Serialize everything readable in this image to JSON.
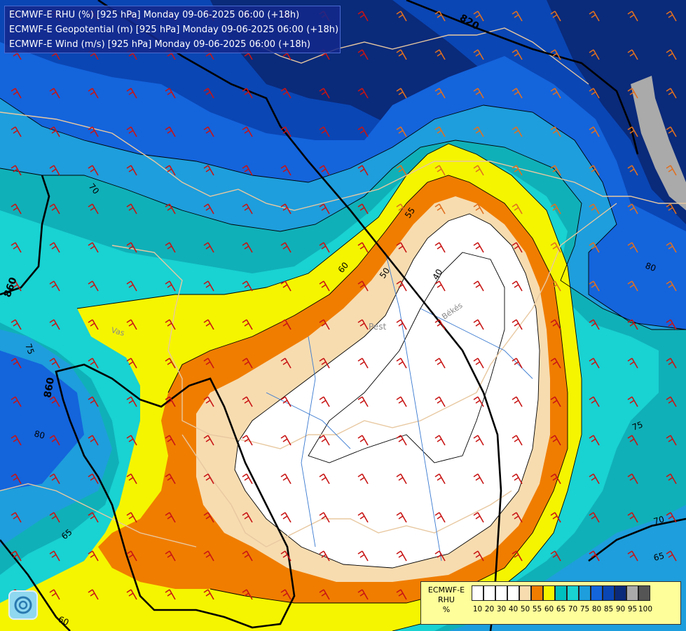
{
  "header": {
    "line1": "ECMWF-E RHU (%) [925 hPa] Monday 09-06-2025 06:00 (+18h)",
    "line2": "ECMWF-E Geopotential (m) [925 hPa] Monday 09-06-2025 06:00 (+18h)",
    "line3": "ECMWF-E Wind (m/s) [925 hPa] Monday 09-06-2025 06:00 (+18h)"
  },
  "legend": {
    "title_line1": "ECMWF-E",
    "title_line2": "RHU",
    "title_line3": "%",
    "levels": [
      "10",
      "20",
      "30",
      "40",
      "50",
      "55",
      "60",
      "65",
      "70",
      "75",
      "80",
      "85",
      "90",
      "95",
      "100"
    ],
    "colors": [
      "#ffffff",
      "#ffffff",
      "#ffffff",
      "#ffffff",
      "#f7dcb0",
      "#f07d00",
      "#f5f500",
      "#00bfbf",
      "#19d2d2",
      "#1e9edc",
      "#1464dc",
      "#0a46b4",
      "#0a2a7a",
      "#aaaaaa",
      "#555555"
    ]
  },
  "map_labels": {
    "geo_820": "820",
    "geo_860a": "860",
    "geo_860b": "860",
    "rh_70a": "70",
    "rh_70b": "70",
    "rh_75a": "75",
    "rh_75b": "75",
    "rh_80a": "80",
    "rh_80b": "80",
    "rh_65a": "65",
    "rh_65b": "65",
    "rh_60a": "60",
    "rh_60b": "60",
    "rh_55": "55",
    "rh_50": "50",
    "rh_40": "40",
    "place_pest": "Pest",
    "place_bekes": "Békés",
    "place_vas": "Vas"
  },
  "colors": {
    "white": "#ffffff",
    "tan": "#f7dcb0",
    "orange": "#f07d00",
    "yellow": "#f5f500",
    "teal": "#19d2d2",
    "teal_dark": "#10b0b8",
    "blue_light": "#1e9edc",
    "blue": "#1464dc",
    "blue_dark": "#0a46b4",
    "navy": "#0a2a7a",
    "gray": "#aaaaaa"
  }
}
